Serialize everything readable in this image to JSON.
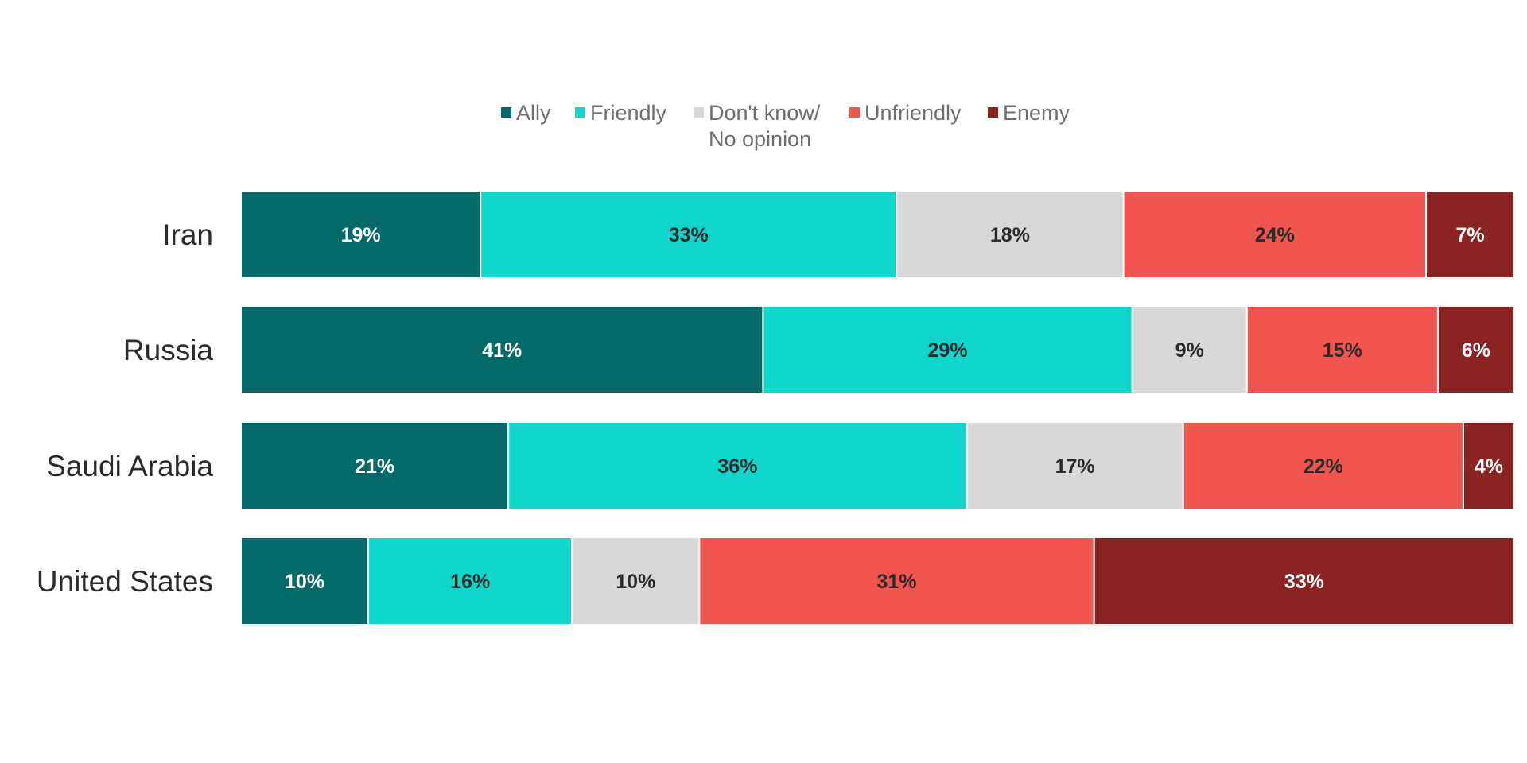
{
  "chart_data": {
    "type": "bar",
    "orientation": "horizontal",
    "stacked": true,
    "percent_stacked": true,
    "title": "",
    "xlabel": "",
    "ylabel": "",
    "grid": false,
    "legend_position": "top",
    "categories": [
      "Iran",
      "Russia",
      "Saudi Arabia",
      "United States"
    ],
    "series": [
      {
        "name": "Ally",
        "color": "#036a69",
        "label_color": "#ffffff",
        "values": [
          19,
          41,
          21,
          10
        ],
        "labels": [
          "19%",
          "41%",
          "21%",
          "10%"
        ]
      },
      {
        "name": "Friendly",
        "color": "#0fd6cb",
        "label_color": "#2b2b2b",
        "values": [
          33,
          29,
          36,
          16
        ],
        "labels": [
          "33%",
          "29%",
          "36%",
          "16%"
        ]
      },
      {
        "name": "Don't know/ No opinion",
        "legend_lines": [
          "Don't know/",
          "No opinion"
        ],
        "color": "#d6d8d9",
        "label_color": "#2b2b2b",
        "values": [
          18,
          9,
          17,
          10
        ],
        "labels": [
          "18%",
          "9%",
          "17%",
          "10%"
        ]
      },
      {
        "name": "Unfriendly",
        "color": "#f0554f",
        "label_color": "#2b2b2b",
        "values": [
          24,
          15,
          22,
          31
        ],
        "labels": [
          "24%",
          "15%",
          "22%",
          "31%"
        ]
      },
      {
        "name": "Enemy",
        "color": "#8a2423",
        "label_color": "#ffffff",
        "values": [
          7,
          6,
          4,
          33
        ],
        "labels": [
          "7%",
          "6%",
          "4%",
          "33%"
        ]
      }
    ]
  }
}
